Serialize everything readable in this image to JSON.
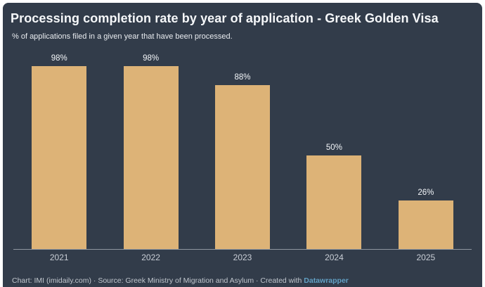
{
  "frame": {
    "outer_background": "#ffffff",
    "panel_background": "#323c4a"
  },
  "header": {
    "title": "Processing completion rate by year of application - Greek Golden Visa",
    "subtitle": "% of applications filed in a given year that have been processed."
  },
  "chart_data": {
    "type": "bar",
    "title": "Processing completion rate by year of application - Greek Golden Visa",
    "subtitle": "% of applications filed in a given year that have been processed.",
    "categories": [
      "2021",
      "2022",
      "2023",
      "2024",
      "2025"
    ],
    "values": [
      98,
      98,
      88,
      50,
      26
    ],
    "value_labels": [
      "98%",
      "98%",
      "88%",
      "50%",
      "26%"
    ],
    "xlabel": "",
    "ylabel": "",
    "ylim": [
      0,
      100
    ],
    "grid": false,
    "legend": "none",
    "bar_color": "#ddb377",
    "value_label_color": "#f3f6f9",
    "tick_label_color": "#c9ced6",
    "axis_line_color": "#8f96a0",
    "background_color": "#323c4a"
  },
  "footer": {
    "credit_prefix": "Chart: IMI (imidaily.com) · Source: Greek Ministry of Migration and Asylum · Created with ",
    "link_label": "Datawrapper",
    "link_color": "#62a1c5"
  }
}
